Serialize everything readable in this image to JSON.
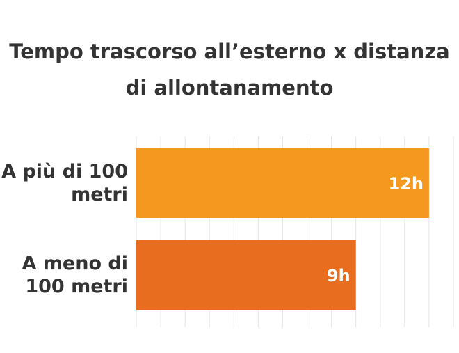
{
  "chart_data": {
    "type": "bar",
    "orientation": "horizontal",
    "title": "Tempo trascorso all’esterno x distanza di allontanamento",
    "categories": [
      "A più di 100 metri",
      "A meno di 100 metri"
    ],
    "values": [
      12,
      9
    ],
    "value_labels": [
      "12h",
      "9h"
    ],
    "colors": [
      "#f4981f",
      "#e96d1e"
    ],
    "xlim": [
      0,
      13
    ],
    "xticks": [
      0,
      1,
      2,
      3,
      4,
      5,
      6,
      7,
      8,
      9,
      10,
      11,
      12,
      13
    ],
    "grid": true
  }
}
